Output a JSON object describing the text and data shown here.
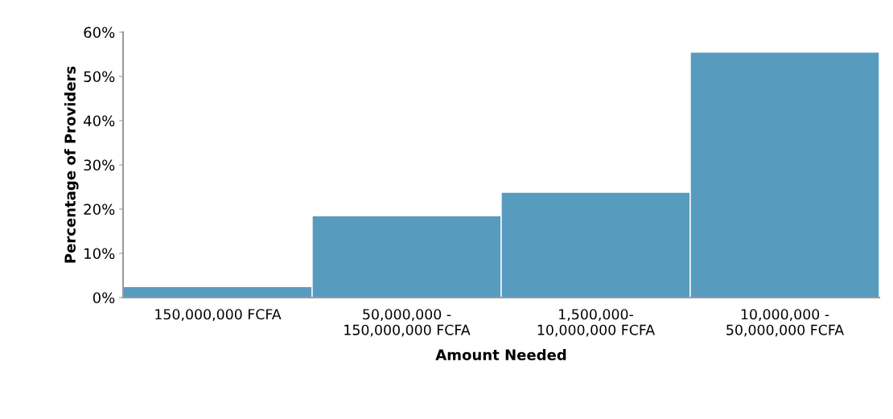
{
  "chart_data": {
    "type": "bar",
    "xlabel": "Amount Needed",
    "ylabel": "Percentage of Providers",
    "categories": [
      "150,000,000 FCFA",
      "50,000,000 -\n150,000,000 FCFA",
      "1,500,000-\n10,000,000 FCFA",
      "10,000,000 -\n50,000,000 FCFA"
    ],
    "values": [
      2.5,
      18.5,
      23.8,
      55.5
    ],
    "color": "#579bbf",
    "ylim": [
      0,
      60
    ],
    "yticks": [
      {
        "value": 0,
        "label": "0%"
      },
      {
        "value": 10,
        "label": "10%"
      },
      {
        "value": 20,
        "label": "20%"
      },
      {
        "value": 30,
        "label": "30%"
      },
      {
        "value": 40,
        "label": "40%"
      },
      {
        "value": 50,
        "label": "50%"
      },
      {
        "value": 60,
        "label": "60%"
      }
    ],
    "grid": false
  }
}
